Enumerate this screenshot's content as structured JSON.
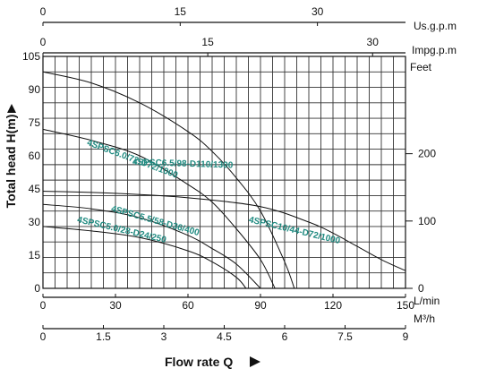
{
  "chart_data": {
    "type": "line",
    "xlabel": "Flow rate Q",
    "ylabel": "Total head H(m)",
    "xlim": [
      0,
      150
    ],
    "ylim": [
      0,
      105
    ],
    "grid": true,
    "y_ticks": [
      0,
      15,
      30,
      45,
      60,
      75,
      90,
      105
    ],
    "right_axis": {
      "unit": "Feet",
      "ticks": [
        "0",
        "100",
        "200"
      ]
    },
    "x_axes": [
      {
        "unit": "Us.g.p.m",
        "ticks": [
          "0",
          "15",
          "30"
        ]
      },
      {
        "unit": "Impg.p.m",
        "ticks": [
          "0",
          "15",
          "30"
        ]
      },
      {
        "unit": "L/min",
        "ticks": [
          "0",
          "30",
          "60",
          "90",
          "120",
          "150"
        ]
      },
      {
        "unit": "M³/h",
        "ticks": [
          "0",
          "1.5",
          "3",
          "4.5",
          "6",
          "7.5",
          "9"
        ]
      }
    ],
    "series": [
      {
        "name": "4SPSC6.5/98-D110/1300",
        "x": [
          0,
          20,
          40,
          60,
          70,
          80,
          90,
          100,
          104
        ],
        "y": [
          98,
          93,
          84,
          71,
          62,
          50,
          35,
          12,
          0
        ]
      },
      {
        "name": "4SPSC6.0/72-D72/1000",
        "x": [
          0,
          20,
          40,
          60,
          70,
          80,
          90,
          96
        ],
        "y": [
          72,
          67,
          60,
          47,
          39,
          27,
          13,
          0
        ]
      },
      {
        "name": "4SPSC10/44-D72/1000",
        "x": [
          0,
          30,
          60,
          90,
          110,
          120,
          130,
          140,
          150
        ],
        "y": [
          44,
          43,
          41,
          37,
          30,
          25,
          19,
          13,
          8
        ]
      },
      {
        "name": "4SPSC5.5/58-D36/400",
        "x": [
          0,
          20,
          40,
          60,
          70,
          80,
          90
        ],
        "y": [
          38,
          36,
          32,
          24,
          18,
          11,
          0
        ]
      },
      {
        "name": "4SPSC5.0/28-D24/250",
        "x": [
          0,
          20,
          40,
          60,
          70,
          80,
          84
        ],
        "y": [
          28,
          26,
          23,
          17,
          12,
          5,
          0
        ]
      }
    ]
  }
}
